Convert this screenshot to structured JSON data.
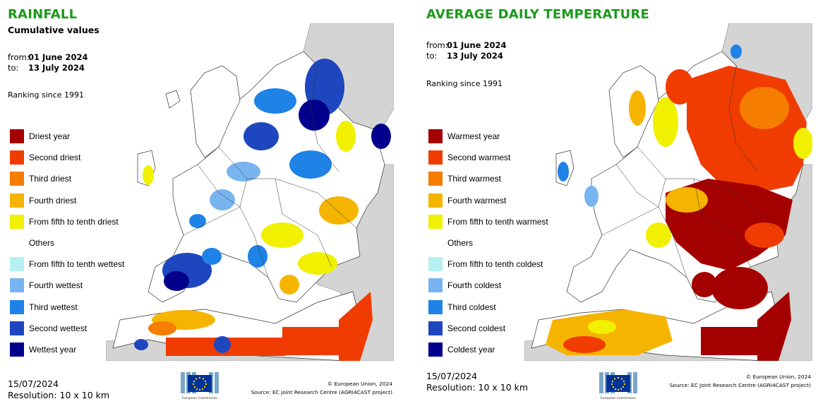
{
  "left": {
    "title": "RAINFALL",
    "subtitle": "Cumulative values",
    "from_label": "from:",
    "from_value": "01 June 2024",
    "to_label": "to:",
    "to_value": "13 July 2024",
    "ranking": "Ranking since 1991",
    "legend": [
      {
        "label": "Driest year",
        "color": "#a50000"
      },
      {
        "label": "Second driest",
        "color": "#f03c00"
      },
      {
        "label": "Third driest",
        "color": "#f57d00"
      },
      {
        "label": "Fourth driest",
        "color": "#f5b400"
      },
      {
        "label": "From fifth to tenth driest",
        "color": "#f0f000"
      },
      {
        "label": "Others",
        "color": "#ffffff"
      },
      {
        "label": "From fifth to tenth wettest",
        "color": "#b4f0f0"
      },
      {
        "label": "Fourth wettest",
        "color": "#78b4f0"
      },
      {
        "label": "Third wettest",
        "color": "#1e82e6"
      },
      {
        "label": "Second wettest",
        "color": "#1e46be"
      },
      {
        "label": "Wettest year",
        "color": "#00008c"
      }
    ],
    "footer_date": "15/07/2024",
    "resolution": "Resolution: 10 x 10 km",
    "copyright": "© European Union, 2024",
    "source": "Source: EC Joint Research Centre (AGRI4CAST project)"
  },
  "right": {
    "title": "AVERAGE DAILY TEMPERATURE",
    "from_label": "from:",
    "from_value": "01 June 2024",
    "to_label": "to:",
    "to_value": "13 July 2024",
    "ranking": "Ranking since 1991",
    "legend": [
      {
        "label": "Warmest year",
        "color": "#a50000"
      },
      {
        "label": "Second warmest",
        "color": "#f03c00"
      },
      {
        "label": "Third warmest",
        "color": "#f57d00"
      },
      {
        "label": "Fourth warmest",
        "color": "#f5b400"
      },
      {
        "label": "From fifth to tenth warmest",
        "color": "#f0f000"
      },
      {
        "label": "Others",
        "color": "#ffffff"
      },
      {
        "label": "From fifth to tenth coldest",
        "color": "#b4f0f0"
      },
      {
        "label": "Fourth coldest",
        "color": "#78b4f0"
      },
      {
        "label": "Third coldest",
        "color": "#1e82e6"
      },
      {
        "label": "Second coldest",
        "color": "#1e46be"
      },
      {
        "label": "Coldest year",
        "color": "#00008c"
      }
    ],
    "footer_date": "15/07/2024",
    "resolution": "Resolution: 10 x 10 km",
    "copyright": "© European Union, 2024",
    "source": "Source: EC Joint Research Centre (AGRI4CAST project)"
  },
  "logo_text": "European Commission",
  "colors": {
    "title": "#1a9a1a",
    "sea": "#ffffff",
    "land_outside": "#d4d4d4",
    "border": "#333333",
    "eu_blue": "#003399",
    "eu_star": "#ffcc00"
  }
}
